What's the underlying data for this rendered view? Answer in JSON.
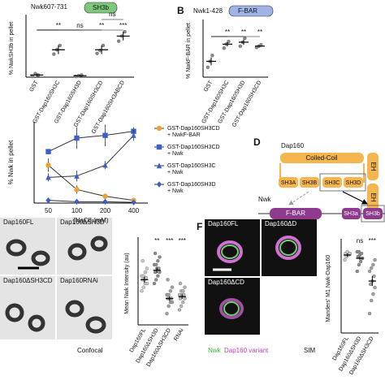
{
  "panel_letters": [
    "B",
    "D",
    "F"
  ],
  "chart_data": [
    {
      "type": "dot",
      "title": "Nwk607-731",
      "domain": "SH3b",
      "ylabel": "% NwkSH3b in pellet",
      "categories": [
        "GST",
        "GST-Dap160SH3C",
        "GST-Dap160SH3D",
        "GST-Dap160SH3CD",
        "GST-Dap160SH3ABCD"
      ],
      "points": [
        [
          1,
          5,
          3
        ],
        [
          32,
          38,
          44
        ],
        [
          1,
          2,
          3
        ],
        [
          33,
          37,
          44
        ],
        [
          50,
          57,
          63
        ]
      ],
      "means": [
        3,
        38,
        2,
        38,
        57
      ],
      "errors": [
        2,
        6,
        1,
        6,
        6
      ],
      "significance": [
        null,
        "**",
        "ns",
        "**",
        "***"
      ],
      "top_significance": "ns",
      "colors": [
        "#888888",
        "#888888",
        "#888888",
        "#888888",
        "#888888"
      ],
      "ylim": [
        0,
        80
      ]
    },
    {
      "type": "dot",
      "title": "Nwk1-428",
      "domain": "F-BAR",
      "ylabel": "% NwkF-BAR in pellet",
      "categories": [
        "GST",
        "GST-Dap160SH3C",
        "GST-Dap160SH3D",
        "GST-Dap160SH3CD"
      ],
      "points": [
        [
          15,
          24,
          33
        ],
        [
          44,
          50,
          54
        ],
        [
          47,
          53,
          59
        ],
        [
          45,
          47,
          49
        ]
      ],
      "means": [
        24,
        50,
        53,
        47
      ],
      "errors": [
        6,
        3,
        4,
        1
      ],
      "significance": [
        null,
        "**",
        "**",
        "**"
      ],
      "colors": [
        "#888888",
        "#888888",
        "#888888",
        "#888888"
      ],
      "ylim": [
        0,
        80
      ]
    },
    {
      "type": "line",
      "ylabel": "% Nwk in pellet",
      "xlabel": "[NaCl] (mM)",
      "categories": [
        "50",
        "100",
        "200",
        "400"
      ],
      "ylim": [
        0,
        60
      ],
      "series": [
        {
          "name": "GST-Dap160SH3CD + NwkF-BAR",
          "color": "#f0a030",
          "marker": "circle",
          "values": [
            28,
            10,
            5,
            2
          ],
          "errors": [
            5,
            3,
            2,
            1
          ]
        },
        {
          "name": "GST-Dap160SH3CD + Nwk",
          "color": "#3a5fcd",
          "marker": "square",
          "values": [
            38,
            48,
            50,
            53
          ],
          "errors": [
            2,
            8,
            8,
            3
          ]
        },
        {
          "name": "GST-Dap160SH3C + Nwk",
          "color": "#3a5fcd",
          "marker": "triangle",
          "values": [
            19,
            20,
            28,
            50
          ],
          "errors": [
            3,
            4,
            3,
            4
          ]
        },
        {
          "name": "GST-Dap160SH3D + Nwk",
          "color": "#3a5fcd",
          "marker": "diamond",
          "values": [
            2,
            1,
            1,
            0.5
          ],
          "errors": [
            1,
            1,
            1,
            1
          ]
        }
      ]
    },
    {
      "type": "dot",
      "ylabel": "Mean Nwk Intensity (au)",
      "categories": [
        "Dap160FL",
        "Dap160ΔSH3D",
        "Dap160ΔSH3CD",
        "RNAi"
      ],
      "points": [
        [
          9,
          10,
          11,
          11,
          12,
          12,
          12.5,
          13,
          13,
          14,
          15,
          17
        ],
        [
          11,
          12,
          13,
          14,
          14,
          15,
          15,
          16,
          16,
          17,
          18,
          19
        ],
        [
          3,
          5,
          6,
          6,
          7,
          7,
          7,
          8,
          8,
          9,
          10,
          12
        ],
        [
          4,
          5,
          6,
          7,
          7,
          8,
          8,
          8,
          9,
          9,
          10,
          11
        ]
      ],
      "means": [
        12,
        14.5,
        7,
        7.5
      ],
      "errors": [
        0.8,
        0.7,
        0.6,
        0.6
      ],
      "significance": [
        null,
        "**",
        "***",
        "***"
      ],
      "colors": [
        "#c8c8c8",
        "#8c8c8c",
        "#a0a0a0",
        "#b4b4b4"
      ],
      "ylim": [
        0,
        22
      ]
    },
    {
      "type": "dot",
      "ylabel": "Manders' M1 Nwk-Dap160",
      "categories": [
        "Dap160FL",
        "Dap160ΔSH3D",
        "Dap160ΔSH3CD"
      ],
      "points": [
        [
          0.95,
          0.97,
          0.98,
          0.99,
          0.99,
          1.0
        ],
        [
          0.88,
          0.92,
          0.94,
          0.96,
          0.97,
          0.98,
          0.99,
          1.0,
          1.0
        ],
        [
          0.62,
          0.7,
          0.74,
          0.78,
          0.8,
          0.82,
          0.85,
          0.88,
          0.9,
          0.92,
          0.95
        ]
      ],
      "means": [
        0.98,
        0.96,
        0.82
      ],
      "errors": [
        0.01,
        0.01,
        0.03
      ],
      "significance": [
        null,
        "ns",
        "***"
      ],
      "colors": [
        "#c8c8c8",
        "#8c8c8c",
        "#a0a0a0"
      ],
      "ylim": [
        0.5,
        1.05
      ]
    }
  ],
  "diagram": {
    "protein1": "Dap160",
    "coiled_coil": "Coiled-Coil",
    "eh": [
      "EH",
      "EH"
    ],
    "sh3": [
      "SH3A",
      "SH3B",
      "SH3C",
      "SH3D"
    ],
    "protein2": "Nwk",
    "fbar": "F-BAR",
    "nwk_sh3": [
      "SH3a",
      "SH3b"
    ]
  },
  "micrographs_e": {
    "labels": [
      "Dap160FL",
      "Dap160ΔSH3D",
      "Dap160ΔSH3CD",
      "Dap160RNAi"
    ],
    "caption": "Confocal"
  },
  "micrographs_f": {
    "labels": [
      "Dap160FL",
      "Dap160ΔD",
      "Dap160ΔCD"
    ],
    "legend": [
      "Nwk",
      "Dap160 variant"
    ],
    "caption": "SIM"
  }
}
